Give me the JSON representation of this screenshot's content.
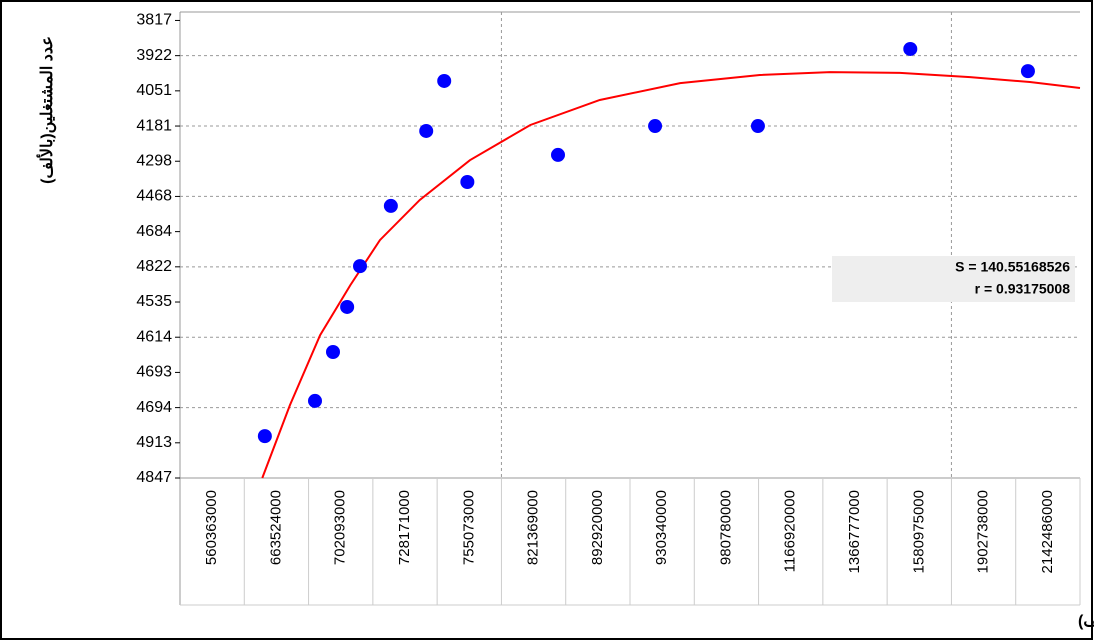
{
  "chart_data": {
    "type": "scatter",
    "x_label": "حجم الدخل القومي(بالألف)",
    "y_label": "عدد المشتغلين(بالألف)",
    "annotations": [
      "S = 140.55168526",
      "r = 0.93175008"
    ],
    "xlim": [
      -0.5,
      13.5
    ],
    "ylim": [
      0,
      13.24
    ],
    "xticks": [
      {
        "value": 0,
        "label": "560363000"
      },
      {
        "value": 1,
        "label": "663524000"
      },
      {
        "value": 2,
        "label": "702093000"
      },
      {
        "value": 3,
        "label": "728171000"
      },
      {
        "value": 4,
        "label": "755073000"
      },
      {
        "value": 5,
        "label": "821369000"
      },
      {
        "value": 6,
        "label": "892920000"
      },
      {
        "value": 7,
        "label": "930340000"
      },
      {
        "value": 8,
        "label": "980780000"
      },
      {
        "value": 9,
        "label": "1166920000"
      },
      {
        "value": 10,
        "label": "1366777000"
      },
      {
        "value": 11,
        "label": "1580975000"
      },
      {
        "value": 12,
        "label": "1902738000"
      },
      {
        "value": 13,
        "label": "2142486000"
      }
    ],
    "yticks": [
      {
        "value": 13,
        "label": "3817"
      },
      {
        "value": 12,
        "label": "3922"
      },
      {
        "value": 11,
        "label": "4051"
      },
      {
        "value": 10,
        "label": "4181"
      },
      {
        "value": 9,
        "label": "4298"
      },
      {
        "value": 8,
        "label": "4468"
      },
      {
        "value": 7,
        "label": "4684"
      },
      {
        "value": 6,
        "label": "4822"
      },
      {
        "value": 5,
        "label": "4535"
      },
      {
        "value": 4,
        "label": "4614"
      },
      {
        "value": 3,
        "label": "4693"
      },
      {
        "value": 2,
        "label": "4694"
      },
      {
        "value": 1,
        "label": "4913"
      },
      {
        "value": 0,
        "label": "4847"
      }
    ],
    "grid": true,
    "series": [
      {
        "color": "#0000ff",
        "x": [
          0.82,
          1.6,
          1.88,
          2.1,
          2.3,
          2.78,
          3.33,
          3.61,
          3.97,
          5.38,
          6.89,
          8.49,
          10.86,
          12.69
        ],
        "values": [
          1.19,
          2.19,
          3.58,
          4.86,
          6.02,
          7.73,
          9.86,
          11.28,
          8.41,
          9.18,
          10.0,
          10.0,
          12.19,
          11.56
        ]
      },
      {
        "color": "#ff0000",
        "line": true,
        "x": [
          0.78,
          1.21,
          1.68,
          2.15,
          2.61,
          3.23,
          4.01,
          4.95,
          6.03,
          7.28,
          8.52,
          9.61,
          10.7,
          11.79,
          12.72,
          13.5
        ],
        "values": [
          0,
          2.07,
          4.06,
          5.48,
          6.76,
          7.9,
          9.03,
          10.03,
          10.74,
          11.22,
          11.45,
          11.53,
          11.51,
          11.39,
          11.25,
          11.08
        ]
      }
    ]
  }
}
